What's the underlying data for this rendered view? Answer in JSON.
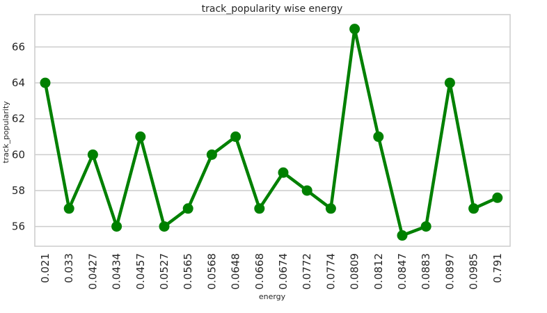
{
  "chart_data": {
    "type": "line",
    "title": "track_popularity wise energy",
    "xlabel": "energy",
    "ylabel": "track_popularity",
    "categories": [
      "0.021",
      "0.033",
      "0.0427",
      "0.0434",
      "0.0457",
      "0.0527",
      "0.0565",
      "0.0568",
      "0.0648",
      "0.0668",
      "0.0674",
      "0.0772",
      "0.0774",
      "0.0809",
      "0.0812",
      "0.0847",
      "0.0883",
      "0.0897",
      "0.0985",
      "0.791"
    ],
    "series": [
      {
        "values": [
          64,
          57,
          60,
          56,
          61,
          56,
          57,
          60,
          61,
          57,
          59,
          58,
          57,
          67,
          61,
          55.5,
          56,
          64,
          57,
          57.6
        ]
      }
    ],
    "ylim": [
      54.9,
      67.8
    ],
    "yticks": [
      56,
      58,
      60,
      62,
      64,
      66
    ],
    "grid": true,
    "line_color": "#008000",
    "grid_color": "#cccccc",
    "frame_color": "#cccccc"
  }
}
